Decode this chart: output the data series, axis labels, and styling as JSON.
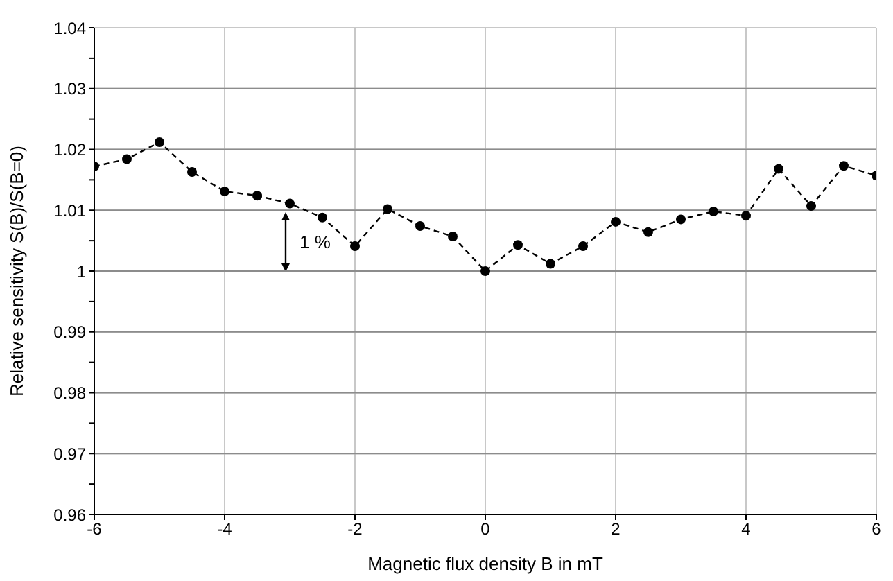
{
  "chart_data": {
    "type": "line",
    "xlabel": "Magnetic flux density B in mT",
    "ylabel": "Relative sensitivity S(B)/S(B=0)",
    "x": [
      -6,
      -5.5,
      -5,
      -4.5,
      -4,
      -3.5,
      -3,
      -2.5,
      -2,
      -1.5,
      -1,
      -0.5,
      0,
      0.5,
      1,
      1.5,
      2,
      2.5,
      3,
      3.5,
      4,
      4.5,
      5,
      5.5,
      6
    ],
    "series": [
      {
        "color": "#000000",
        "values": [
          1.0172,
          1.0184,
          1.0212,
          1.0163,
          1.0131,
          1.0124,
          1.0111,
          1.0088,
          1.0041,
          1.0102,
          1.0074,
          1.0057,
          1.0,
          1.0043,
          1.0012,
          1.0041,
          1.0081,
          1.0064,
          1.0085,
          1.0098,
          1.0091,
          1.0168,
          1.0107,
          1.0173,
          1.0157
        ]
      }
    ],
    "xlim": [
      -6,
      6
    ],
    "xticks": [
      -6,
      -4,
      -2,
      0,
      2,
      4,
      6
    ],
    "ylim": [
      0.96,
      1.04
    ],
    "yticks": [
      0.96,
      {
        "value": 0.965,
        "label": null
      },
      0.97,
      {
        "value": 0.975,
        "label": null
      },
      0.98,
      {
        "value": 0.985,
        "label": null
      },
      0.99,
      {
        "value": 0.995,
        "label": null
      },
      1,
      {
        "value": 1.005,
        "label": null
      },
      1.01,
      {
        "value": 1.015,
        "label": null
      },
      1.02,
      {
        "value": 1.025,
        "label": null
      },
      1.03,
      {
        "value": 1.035,
        "label": null
      },
      1.04
    ],
    "grid": true,
    "marker": "circle",
    "line_style": "dashed",
    "annotations": [
      "1 %"
    ]
  }
}
